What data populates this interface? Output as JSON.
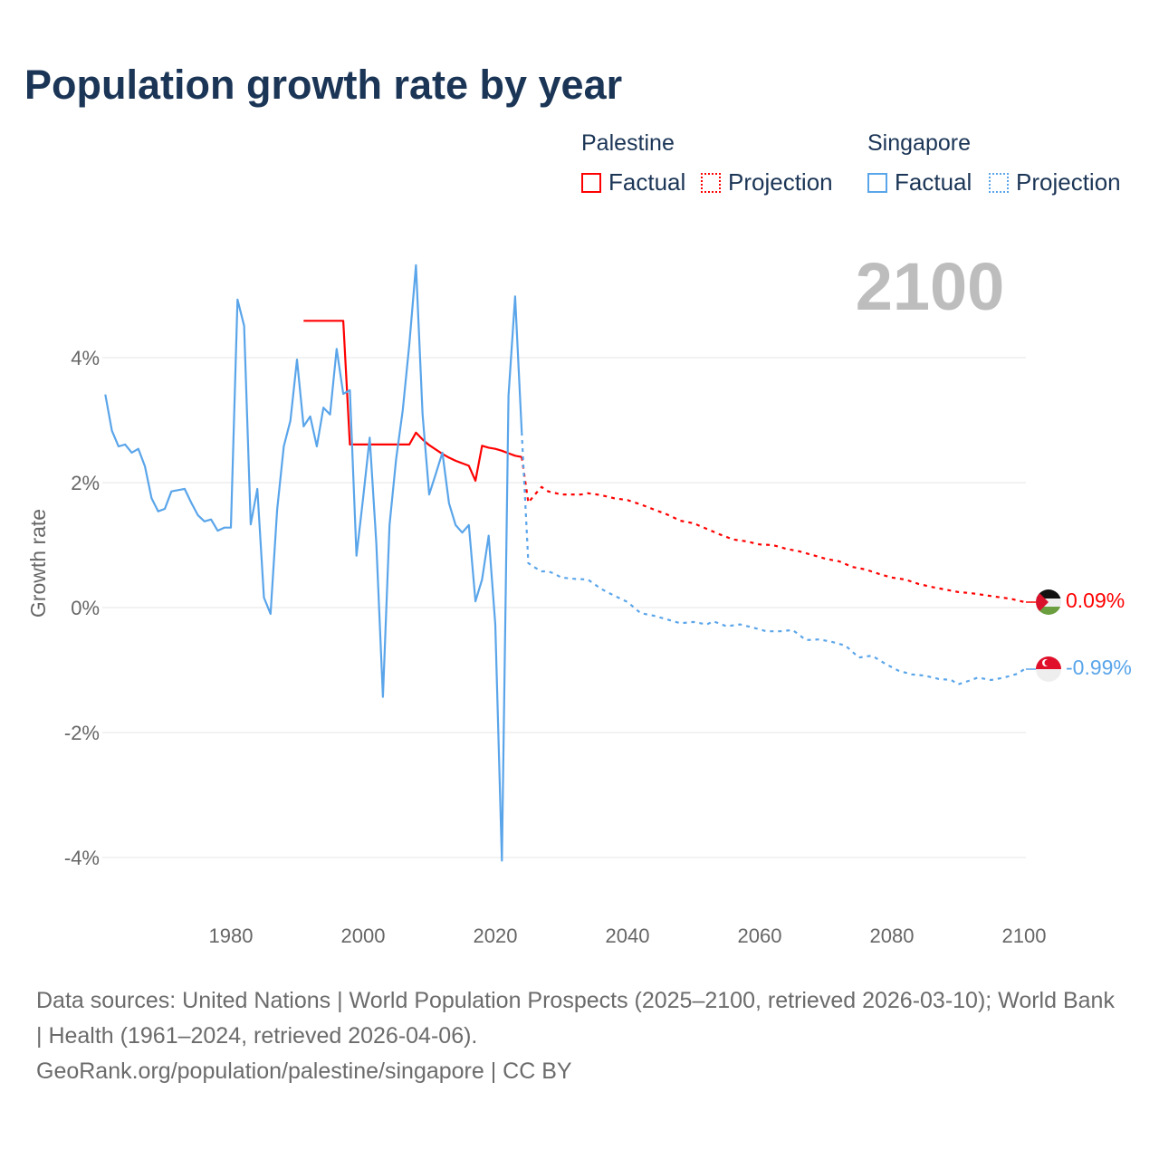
{
  "title": "Population growth rate by year",
  "legend": {
    "groups": [
      {
        "name": "Palestine",
        "factual": "Factual",
        "projection": "Projection",
        "color": "#ff0000"
      },
      {
        "name": "Singapore",
        "factual": "Factual",
        "projection": "Projection",
        "color": "#5aa5ea"
      }
    ]
  },
  "year_label": "2100",
  "end_labels": {
    "palestine": "0.09%",
    "singapore": "-0.99%"
  },
  "flags": {
    "palestine": "palestine-flag-icon",
    "singapore": "singapore-flag-icon"
  },
  "footer": {
    "sources": "Data sources: United Nations | World Population Prospects (2025–2100, retrieved 2026-03-10); World Bank | Health (1961–2024, retrieved 2026-04-06).",
    "link": "GeoRank.org/population/palestine/singapore | CC BY"
  },
  "chart_data": {
    "type": "line",
    "title": "Population growth rate by year",
    "xlabel": "",
    "ylabel": "Growth rate",
    "xlim": [
      1961,
      2100
    ],
    "ylim": [
      -4.8,
      5.6
    ],
    "x_ticks": [
      1980,
      2000,
      2020,
      2040,
      2060,
      2080,
      2100
    ],
    "y_ticks": [
      4,
      2,
      0,
      -2,
      -4
    ],
    "y_tick_labels": [
      "4%",
      "2%",
      "0%",
      "-2%",
      "-4%"
    ],
    "grid": true,
    "legend_position": "top-right",
    "series": [
      {
        "name": "Palestine Factual",
        "color": "#ff0000",
        "style": "solid",
        "x": [
          1991,
          1997,
          1998,
          2007,
          2008,
          2009,
          2010,
          2011,
          2012,
          2013,
          2014,
          2015,
          2016,
          2017,
          2018,
          2019,
          2020,
          2021,
          2022,
          2023,
          2024
        ],
        "y": [
          4.59,
          4.59,
          2.61,
          2.61,
          2.8,
          2.69,
          2.6,
          2.53,
          2.46,
          2.4,
          2.35,
          2.31,
          2.27,
          2.03,
          2.59,
          2.56,
          2.54,
          2.51,
          2.47,
          2.43,
          2.41
        ]
      },
      {
        "name": "Palestine Projection",
        "color": "#ff0000",
        "style": "dotted",
        "x": [
          2024,
          2025,
          2026,
          2027,
          2028,
          2030,
          2033,
          2034,
          2036,
          2038,
          2040,
          2042,
          2044,
          2046,
          2048,
          2050,
          2052,
          2054,
          2056,
          2058,
          2060,
          2062,
          2064,
          2066,
          2068,
          2070,
          2072,
          2074,
          2076,
          2078,
          2080,
          2082,
          2084,
          2086,
          2088,
          2090,
          2092,
          2094,
          2096,
          2098,
          2100
        ],
        "y": [
          2.41,
          1.68,
          1.81,
          1.93,
          1.86,
          1.81,
          1.81,
          1.83,
          1.8,
          1.75,
          1.72,
          1.65,
          1.57,
          1.49,
          1.39,
          1.35,
          1.26,
          1.17,
          1.09,
          1.06,
          1.01,
          1.0,
          0.94,
          0.9,
          0.84,
          0.78,
          0.74,
          0.65,
          0.61,
          0.54,
          0.48,
          0.45,
          0.38,
          0.33,
          0.29,
          0.25,
          0.23,
          0.2,
          0.17,
          0.14,
          0.09
        ]
      },
      {
        "name": "Singapore Factual",
        "color": "#5aa5ea",
        "style": "solid",
        "x": [
          1961,
          1962,
          1963,
          1964,
          1965,
          1966,
          1967,
          1968,
          1969,
          1970,
          1971,
          1972,
          1973,
          1974,
          1975,
          1976,
          1977,
          1978,
          1979,
          1980,
          1981,
          1982,
          1983,
          1984,
          1985,
          1986,
          1987,
          1988,
          1989,
          1990,
          1991,
          1992,
          1993,
          1994,
          1995,
          1996,
          1997,
          1998,
          1999,
          2000,
          2001,
          2002,
          2003,
          2004,
          2005,
          2006,
          2007,
          2008,
          2009,
          2010,
          2011,
          2012,
          2013,
          2014,
          2015,
          2016,
          2017,
          2018,
          2019,
          2020,
          2021,
          2022,
          2023,
          2024
        ],
        "y": [
          3.41,
          2.83,
          2.58,
          2.61,
          2.48,
          2.54,
          2.26,
          1.75,
          1.54,
          1.58,
          1.86,
          1.88,
          1.9,
          1.68,
          1.48,
          1.38,
          1.41,
          1.23,
          1.28,
          1.28,
          4.93,
          4.51,
          1.33,
          1.9,
          0.16,
          -0.1,
          1.57,
          2.58,
          2.99,
          3.97,
          2.9,
          3.06,
          2.58,
          3.2,
          3.09,
          4.14,
          3.42,
          3.48,
          0.83,
          1.75,
          2.72,
          1.03,
          -1.43,
          1.32,
          2.38,
          3.16,
          4.22,
          5.48,
          3.09,
          1.81,
          2.14,
          2.48,
          1.67,
          1.32,
          1.2,
          1.32,
          0.1,
          0.45,
          1.15,
          -0.27,
          -4.05,
          3.39,
          4.98,
          2.81
        ]
      },
      {
        "name": "Singapore Projection",
        "color": "#5aa5ea",
        "style": "dotted",
        "x": [
          2024,
          2025,
          2026,
          2027,
          2028,
          2029,
          2030,
          2032,
          2034,
          2036,
          2038,
          2040,
          2042,
          2044,
          2046,
          2048,
          2050,
          2052,
          2053,
          2055,
          2057,
          2059,
          2061,
          2063,
          2065,
          2067,
          2069,
          2071,
          2073,
          2075,
          2077,
          2079,
          2081,
          2083,
          2085,
          2087,
          2089,
          2090,
          2092,
          2093,
          2095,
          2097,
          2099,
          2100
        ],
        "y": [
          2.81,
          0.71,
          0.64,
          0.58,
          0.58,
          0.54,
          0.48,
          0.46,
          0.45,
          0.3,
          0.19,
          0.09,
          -0.09,
          -0.13,
          -0.19,
          -0.25,
          -0.23,
          -0.27,
          -0.22,
          -0.3,
          -0.27,
          -0.32,
          -0.38,
          -0.38,
          -0.36,
          -0.52,
          -0.51,
          -0.55,
          -0.61,
          -0.8,
          -0.77,
          -0.9,
          -1.01,
          -1.07,
          -1.09,
          -1.14,
          -1.16,
          -1.23,
          -1.16,
          -1.12,
          -1.16,
          -1.12,
          -1.06,
          -0.99
        ]
      }
    ]
  }
}
